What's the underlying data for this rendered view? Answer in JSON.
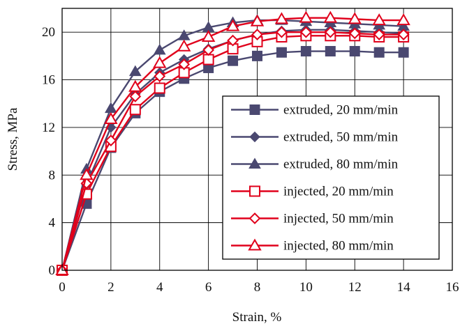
{
  "chart_data": {
    "type": "line",
    "title": "",
    "xlabel": "Strain, %",
    "ylabel": "Stress, MPa",
    "xlim": [
      0,
      16
    ],
    "ylim": [
      0,
      22
    ],
    "xticks": [
      0,
      2,
      4,
      6,
      8,
      10,
      12,
      14,
      16
    ],
    "yticks": [
      0,
      4,
      8,
      12,
      16,
      20
    ],
    "grid": true,
    "legend_position": "right",
    "x": [
      0,
      1,
      2,
      3,
      4,
      5,
      6,
      7,
      8,
      9,
      10,
      11,
      12,
      13,
      14
    ],
    "series": [
      {
        "name": "extruded, 20 mm/min",
        "color": "#4a4870",
        "marker": "square-filled",
        "values": [
          0,
          5.6,
          10.3,
          13.2,
          15.0,
          16.1,
          17.0,
          17.6,
          18.0,
          18.3,
          18.4,
          18.4,
          18.4,
          18.3,
          18.3
        ]
      },
      {
        "name": "extruded, 50 mm/min",
        "color": "#4a4870",
        "marker": "diamond-filled",
        "values": [
          0,
          7.2,
          12.0,
          14.8,
          16.6,
          17.7,
          18.6,
          19.3,
          19.8,
          20.1,
          20.2,
          20.2,
          20.1,
          20.0,
          19.9
        ]
      },
      {
        "name": "extruded, 80 mm/min",
        "color": "#4a4870",
        "marker": "triangle-filled",
        "values": [
          0,
          8.5,
          13.6,
          16.7,
          18.5,
          19.7,
          20.4,
          20.8,
          21.0,
          21.0,
          20.9,
          20.8,
          20.7,
          20.6,
          20.5
        ]
      },
      {
        "name": "injected, 20 mm/min",
        "color": "#e0001b",
        "marker": "square-open",
        "values": [
          0,
          6.4,
          10.4,
          13.5,
          15.3,
          16.6,
          17.7,
          18.6,
          19.2,
          19.6,
          19.7,
          19.7,
          19.7,
          19.6,
          19.6
        ]
      },
      {
        "name": "injected, 50 mm/min",
        "color": "#e0001b",
        "marker": "diamond-open",
        "values": [
          0,
          7.3,
          10.9,
          14.6,
          16.3,
          17.3,
          18.5,
          19.3,
          19.8,
          20.0,
          20.0,
          20.0,
          19.9,
          19.8,
          19.8
        ]
      },
      {
        "name": "injected, 80 mm/min",
        "color": "#e0001b",
        "marker": "triangle-open",
        "values": [
          0,
          8.0,
          12.7,
          15.4,
          17.4,
          18.8,
          19.6,
          20.5,
          20.9,
          21.1,
          21.2,
          21.2,
          21.1,
          21.0,
          21.0
        ]
      }
    ]
  }
}
